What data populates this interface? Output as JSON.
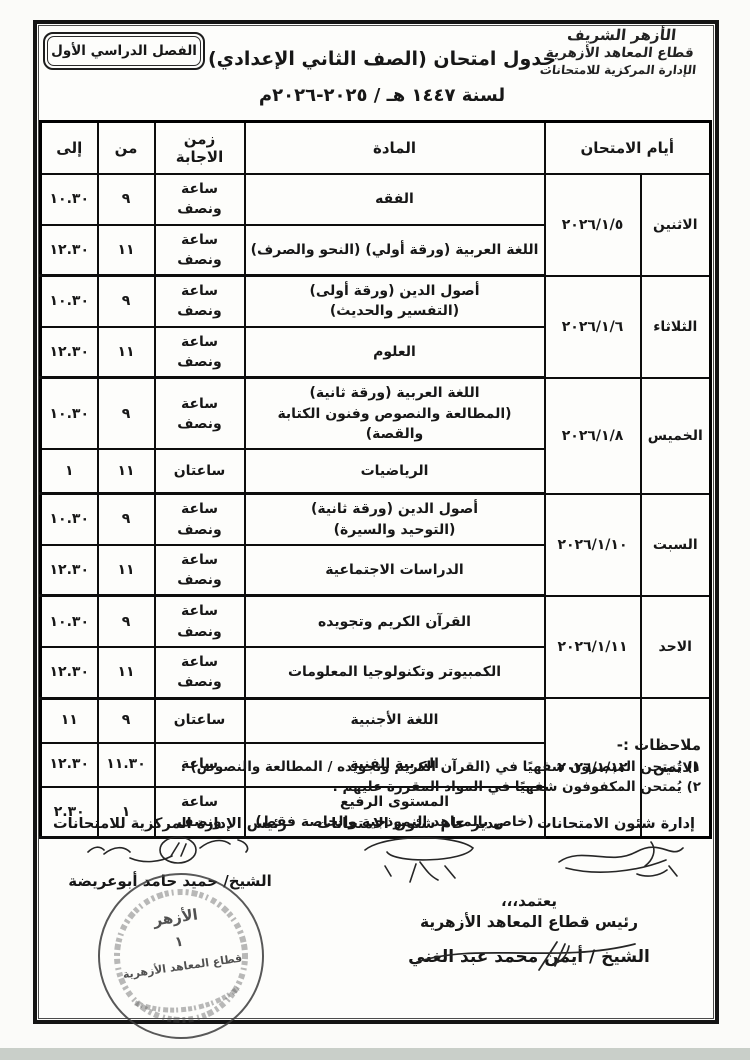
{
  "page": {
    "semester_badge": "الفصل الدراسي الأول",
    "organization": {
      "lines": [
        "الأزهر الشريف",
        "قطاع المعاهد الأزهرية",
        "الإدارة المركزية للامتحانات"
      ]
    },
    "title": "جدول امتحان (الصف الثاني الإعدادي)",
    "subtitle": "لسنة ١٤٤٧ هـ / ٢٠٢٥-٢٠٢٦م"
  },
  "table": {
    "headers": {
      "days": "أيام الامتحان",
      "subject": "المادة",
      "duration": "زمن الاجابة",
      "from": "من",
      "to": "إلى"
    },
    "groups": [
      {
        "day": "الاثنين",
        "date": "٢٠٢٦/١/٥",
        "rows": [
          {
            "subject": "الفقه",
            "duration": "ساعة ونصف",
            "from": "٩",
            "to": "١٠.٣٠"
          },
          {
            "subject": "اللغة العربية (ورقة أولي) (النحو والصرف)",
            "duration": "ساعة ونصف",
            "from": "١١",
            "to": "١٢.٣٠"
          }
        ]
      },
      {
        "day": "الثلاثاء",
        "date": "٢٠٢٦/١/٦",
        "rows": [
          {
            "subject": "أصول الدين (ورقة أولى)\n(التفسير والحديث)",
            "duration": "ساعة ونصف",
            "from": "٩",
            "to": "١٠.٣٠"
          },
          {
            "subject": "العلوم",
            "duration": "ساعة ونصف",
            "from": "١١",
            "to": "١٢.٣٠"
          }
        ]
      },
      {
        "day": "الخميس",
        "date": "٢٠٢٦/١/٨",
        "rows": [
          {
            "subject": "اللغة العربية (ورقة ثانية)\n(المطالعة والنصوص وفنون الكتابة والقصة)",
            "duration": "ساعة ونصف",
            "from": "٩",
            "to": "١٠.٣٠"
          },
          {
            "subject": "الرياضيات",
            "duration": "ساعتان",
            "from": "١١",
            "to": "١"
          }
        ]
      },
      {
        "day": "السبت",
        "date": "٢٠٢٦/١/١٠",
        "rows": [
          {
            "subject": "أصول الدين (ورقة ثانية)\n(التوحيد والسيرة)",
            "duration": "ساعة ونصف",
            "from": "٩",
            "to": "١٠.٣٠"
          },
          {
            "subject": "الدراسات الاجتماعية",
            "duration": "ساعة ونصف",
            "from": "١١",
            "to": "١٢.٣٠"
          }
        ]
      },
      {
        "day": "الاحد",
        "date": "٢٠٢٦/١/١١",
        "rows": [
          {
            "subject": "القرآن الكريم وتجويده",
            "duration": "ساعة ونصف",
            "from": "٩",
            "to": "١٠.٣٠"
          },
          {
            "subject": "الكمبيوتر وتكنولوجيا المعلومات",
            "duration": "ساعة ونصف",
            "from": "١١",
            "to": "١٢.٣٠"
          }
        ]
      },
      {
        "day": "الاثنين",
        "date": "٢٠٢٦/١/١٢",
        "rows": [
          {
            "subject": "اللغة الأجنبية",
            "duration": "ساعتان",
            "from": "٩",
            "to": "١١"
          },
          {
            "subject": "التربية الفنية",
            "duration": "ساعة",
            "from": "١١.٣٠",
            "to": "١٢.٣٠"
          },
          {
            "subject": "المستوى الرفيع\n(خاص بالمعاهد النموذجية والخاصة فقط)",
            "duration": "ساعة ونصف",
            "from": "١",
            "to": "٢.٣٠"
          }
        ]
      }
    ]
  },
  "notes": {
    "title": "ملاحظات :-",
    "items": [
      "١) يُمتحن المبصرون شفهيًا في (القرآن الكريم وتجويده / المطالعة والنصوص) .",
      "٢) يُمتحن المكفوفون شفهيًا في المواد المقررة عليهم ."
    ]
  },
  "signatures": {
    "right": {
      "title": "إدارة شئون الامتحانات"
    },
    "center": {
      "title": "مدير عام شئون الامتحانات"
    },
    "left": {
      "title": "رئيس الإدارة المركزية للامتحانات",
      "name": "الشيخ/ حميد حامد أبوعريضة"
    }
  },
  "approval": {
    "word": "يعتمد،،،",
    "title": "رئيس قطاع المعاهد الأزهرية",
    "name": "الشيخ / أيمن محمد عبد الغني"
  },
  "stamp": {
    "top": "الأزهر",
    "number": "١",
    "middle": "قطاع المعاهد الأزهرية"
  }
}
